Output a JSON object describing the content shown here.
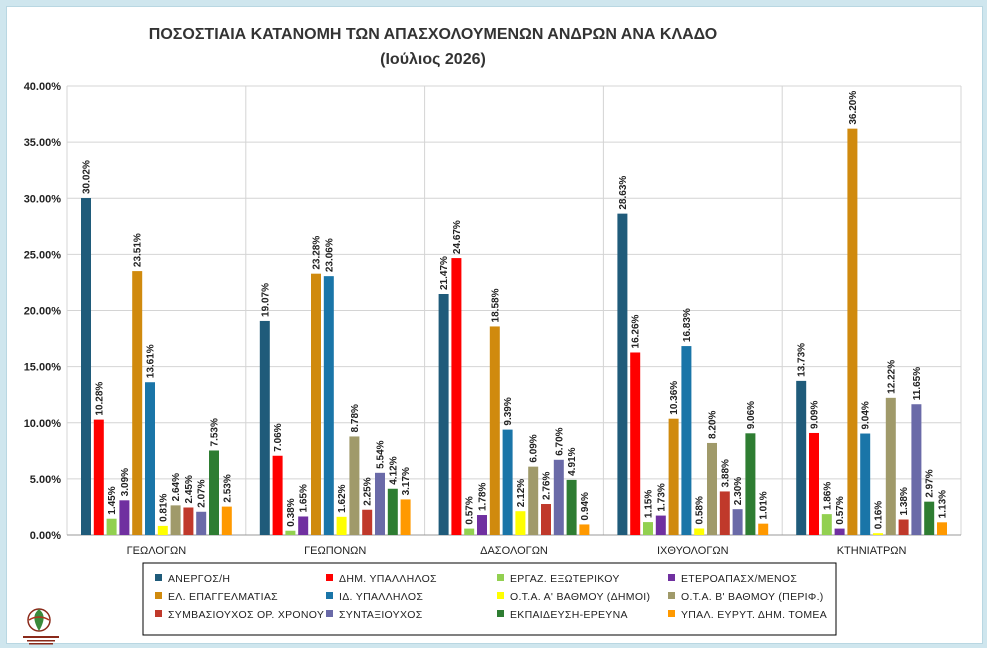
{
  "chart_data": {
    "type": "bar",
    "title": "ΠΟΣΟΣΤΙΑΙΑ ΚΑΤΑΝΟΜΗ ΤΩΝ ΑΠΑΣΧΟΛΟΥΜΕΝΩΝ ΑΝΔΡΩΝ ΑΝΑ ΚΛΑΔΟ",
    "subtitle": "(Ιούλιος 2026)",
    "xlabel": "",
    "ylabel": "",
    "ylim": [
      0,
      40
    ],
    "yticks": [
      "0.00%",
      "5.00%",
      "10.00%",
      "15.00%",
      "20.00%",
      "25.00%",
      "30.00%",
      "35.00%",
      "40.00%"
    ],
    "grid": true,
    "legend_position": "bottom",
    "categories": [
      "ΓΕΩΛΟΓΩΝ",
      "ΓΕΩΠΟΝΩΝ",
      "ΔΑΣΟΛΟΓΩΝ",
      "ΙΧΘΥΟΛΟΓΩΝ",
      "ΚΤΗΝΙΑΤΡΩΝ"
    ],
    "series": [
      {
        "name": "ΑΝΕΡΓΟΣ/Η",
        "color": "#1f5b7a",
        "values": [
          30.02,
          19.07,
          21.47,
          28.63,
          13.73
        ],
        "labels": [
          "30.02%",
          "19.07%",
          "21.47%",
          "28.63%",
          "13.73%"
        ]
      },
      {
        "name": "ΔΗΜ. ΥΠΑΛΛΗΛΟΣ",
        "color": "#ff0000",
        "values": [
          10.28,
          7.06,
          24.67,
          16.26,
          9.09
        ],
        "labels": [
          "10.28%",
          "7.06%",
          "24.67%",
          "16.26%",
          "9.09%"
        ]
      },
      {
        "name": "ΕΡΓΑΖ. ΕΞΩΤΕΡΙΚΟΥ",
        "color": "#92d050",
        "values": [
          1.45,
          0.38,
          0.57,
          1.15,
          1.86
        ],
        "labels": [
          "1.45%",
          "0.38%",
          "0.57%",
          "1.15%",
          "1.86%"
        ]
      },
      {
        "name": "ΕΤΕΡΟΑΠΑΣΧ/ΜΕΝΟΣ",
        "color": "#7030a0",
        "values": [
          3.09,
          1.65,
          1.78,
          1.73,
          0.57
        ],
        "labels": [
          "3.09%",
          "1.65%",
          "1.78%",
          "1.73%",
          "0.57%"
        ]
      },
      {
        "name": "ΕΛ. ΕΠΑΓΓΕΛΜΑΤΙΑΣ",
        "color": "#d08a0e",
        "values": [
          23.51,
          23.28,
          18.58,
          10.36,
          36.2
        ],
        "labels": [
          "23.51%",
          "23.28%",
          "18.58%",
          "10.36%",
          "36.20%"
        ]
      },
      {
        "name": "ΙΔ. ΥΠΑΛΛΗΛΟΣ",
        "color": "#1a75a8",
        "values": [
          13.61,
          23.06,
          9.39,
          16.83,
          9.04
        ],
        "labels": [
          "13.61%",
          "23.06%",
          "9.39%",
          "16.83%",
          "9.04%"
        ]
      },
      {
        "name": "Ο.Τ.Α. Α' ΒΑΘΜΟΥ (ΔΗΜΟΙ)",
        "color": "#ffff00",
        "values": [
          0.81,
          1.62,
          2.12,
          0.58,
          0.16
        ],
        "labels": [
          "0.81%",
          "1.62%",
          "2.12%",
          "0.58%",
          "0.16%"
        ]
      },
      {
        "name": "Ο.Τ.Α. Β' ΒΑΘΜΟΥ (ΠΕΡΙΦ.)",
        "color": "#a09a6a",
        "values": [
          2.64,
          8.78,
          6.09,
          8.2,
          12.22
        ],
        "labels": [
          "2.64%",
          "8.78%",
          "6.09%",
          "8.20%",
          "12.22%"
        ]
      },
      {
        "name": "ΣΥΜΒΑΣΙΟΥΧΟΣ ΟΡ. ΧΡΟΝΟΥ",
        "color": "#c0392b",
        "values": [
          2.45,
          2.25,
          2.76,
          3.88,
          1.38
        ],
        "labels": [
          "2.45%",
          "2.25%",
          "2.76%",
          "3.88%",
          "1.38%"
        ]
      },
      {
        "name": "ΣΥΝΤΑΞΙΟΥΧΟΣ",
        "color": "#6a6aa8",
        "values": [
          2.07,
          5.54,
          6.7,
          2.3,
          11.65
        ],
        "labels": [
          "2.07%",
          "5.54%",
          "6.70%",
          "2.30%",
          "11.65%"
        ]
      },
      {
        "name": "ΕΚΠΑΙΔΕΥΣΗ-ΕΡΕΥΝΑ",
        "color": "#2e7d32",
        "values": [
          7.53,
          4.12,
          4.91,
          9.06,
          2.97
        ],
        "labels": [
          "7.53%",
          "4.12%",
          "4.91%",
          "9.06%",
          "2.97%"
        ]
      },
      {
        "name": "ΥΠΑΛ. ΕΥΡΥΤ. ΔΗΜ. ΤΟΜΕΑ",
        "color": "#ff9900",
        "values": [
          2.53,
          3.17,
          0.94,
          1.01,
          1.13
        ],
        "labels": [
          "2.53%",
          "3.17%",
          "0.94%",
          "1.01%",
          "1.13%"
        ]
      }
    ]
  },
  "logo": {
    "icon": "organization-logo-icon"
  }
}
